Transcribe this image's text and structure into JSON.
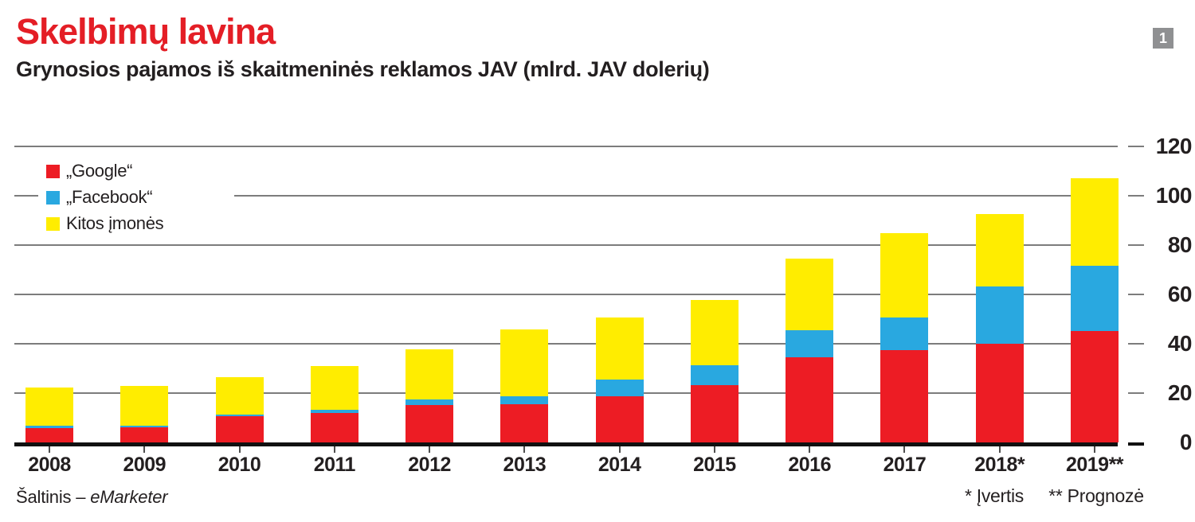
{
  "header": {
    "title": "Skelbimų lavina",
    "subtitle": "Grynosios pajamos iš skaitmeninės reklamos JAV (mlrd. JAV dolerių)",
    "badge": "1"
  },
  "colors": {
    "title_red": "#e41e26",
    "google_red": "#ed1c24",
    "facebook_blue": "#29a8e0",
    "others_yellow": "#ffed00",
    "gridline_gray": "#7c7c7c",
    "axis_black": "#111111",
    "badge_gray": "#8f9092"
  },
  "legend": {
    "items": [
      {
        "label": "„Google“",
        "color": "#ed1c24"
      },
      {
        "label": "„Facebook“",
        "color": "#29a8e0"
      },
      {
        "label": "Kitos įmonės",
        "color": "#ffed00"
      }
    ]
  },
  "footer": {
    "source_prefix": "Šaltinis – ",
    "source_name": "eMarketer",
    "note_estimate": "* Įvertis",
    "note_forecast": "** Prognozė"
  },
  "chart_data": {
    "type": "bar",
    "stacked": true,
    "title": "Skelbimų lavina",
    "subtitle": "Grynosios pajamos iš skaitmeninės reklamos JAV (mlrd. JAV dolerių)",
    "categories": [
      "2008",
      "2009",
      "2010",
      "2011",
      "2012",
      "2013",
      "2014",
      "2015",
      "2016",
      "2017",
      "2018*",
      "2019**"
    ],
    "series": [
      {
        "name": "„Google“",
        "color": "#ed1c24",
        "values": [
          5.7,
          6.0,
          10.7,
          12.0,
          15.2,
          15.5,
          18.8,
          23.3,
          34.5,
          37.5,
          40.0,
          45.3
        ]
      },
      {
        "name": "„Facebook“",
        "color": "#29a8e0",
        "values": [
          1.1,
          0.8,
          0.7,
          1.2,
          2.3,
          3.2,
          6.6,
          7.9,
          11.0,
          13.0,
          23.3,
          26.2
        ]
      },
      {
        "name": "Kitos įmonės",
        "color": "#ffed00",
        "values": [
          15.6,
          16.0,
          15.0,
          17.7,
          20.4,
          27.2,
          25.1,
          26.7,
          29.1,
          34.4,
          29.4,
          35.7
        ]
      }
    ],
    "totals": [
      22.4,
      22.8,
      26.4,
      30.9,
      37.9,
      45.9,
      50.5,
      57.9,
      74.6,
      84.9,
      92.7,
      107.2
    ],
    "xlabel": "",
    "ylabel": "",
    "ylim": [
      0,
      120
    ],
    "yticks": [
      0,
      20,
      40,
      60,
      80,
      100,
      120
    ],
    "ytick_side": "right",
    "grid": true,
    "legend_position": "top-left"
  }
}
